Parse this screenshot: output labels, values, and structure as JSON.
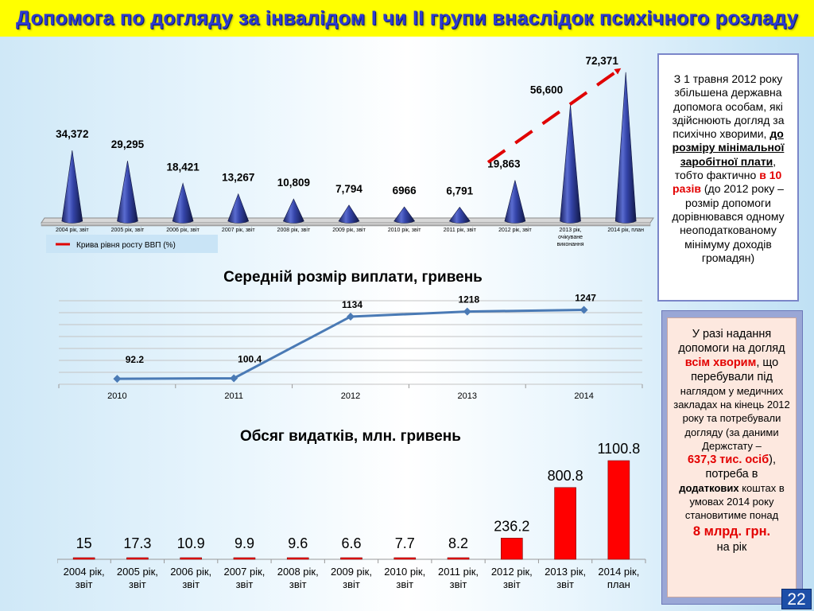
{
  "title": "Допомога по догляду за інвалідом І чи ІІ групи внаслідок психічного розладу",
  "page_number": "22",
  "colors": {
    "title_bg": "#ffff00",
    "title_text": "#2e3bd0",
    "cone": "#27348b",
    "line": "#4a7ab5",
    "bars": "#ff0000",
    "highlight": "#e30000"
  },
  "side_note_1": {
    "p1": "З 1 травня 2012 року збільшена державна допомога особам, які здійснюють догляд за психічно хворими, ",
    "u1": "до розміру мінімальної заробітної плати",
    "p2": ", тобто фактично ",
    "r1": "в 10 разів",
    "p3": " (до 2012 року – розмір допомоги дорівнювався одному неоподаткованому мінімуму доходів громадян)"
  },
  "side_note_2": {
    "l1": "У разі надання допомоги на догляд",
    "r1": "всім хворим",
    "l2": ", що перебували під",
    "l3": "наглядом у медичних закладах на кінець 2012 року та потребували догляду (за даними Держстату –",
    "r2": "637,3 тис. осіб",
    "l4": "), потреба в",
    "b1": "додаткових",
    "l5": " коштах в умовах 2014 року становитиме понад",
    "r3": "8 млрд. грн.",
    "l6": "на рік"
  },
  "chart_data": [
    {
      "type": "bar",
      "categories": [
        "2004 рік, звіт",
        "2005 рік, звіт",
        "2006 рік, звіт",
        "2007 рік, звіт",
        "2008 рік, звіт",
        "2009 рік, звіт",
        "2010 рік, звіт",
        "2011 рік, звіт",
        "2012 рік, звіт",
        "2013 рік, очікуване виконання",
        "2014 рік, план"
      ],
      "values": [
        34.372,
        29.295,
        18.421,
        13.267,
        10.809,
        7.794,
        6.966,
        6.791,
        19.863,
        56.6,
        72.371
      ],
      "data_labels": [
        "34,372",
        "29,295",
        "18,421",
        "13,267",
        "10,809",
        "7,794",
        "6966",
        "6,791",
        "19,863",
        "56,600",
        "72,371"
      ],
      "legend": [
        "Крива рівня росту ВВП (%)"
      ],
      "legend_position": "bottom-left"
    },
    {
      "type": "line",
      "title": "Середній розмір виплати, гривень",
      "categories": [
        "2010",
        "2011",
        "2012",
        "2013",
        "2014"
      ],
      "values": [
        92.2,
        100.4,
        1134,
        1218,
        1247
      ],
      "data_labels": [
        "92.2",
        "100.4",
        "1134",
        "1218",
        "1247"
      ],
      "ylim": [
        0,
        1400
      ],
      "grid": true
    },
    {
      "type": "bar",
      "title": "Обсяг видатків, млн. гривень",
      "categories": [
        "2004 рік, звіт",
        "2005 рік, звіт",
        "2006 рік, звіт",
        "2007 рік, звіт",
        "2008 рік, звіт",
        "2009 рік, звіт",
        "2010 рік, звіт",
        "2011 рік, звіт",
        "2012 рік, звіт",
        "2013 рік, звіт",
        "2014 рік, план"
      ],
      "values": [
        15,
        17.3,
        10.9,
        9.9,
        9.6,
        6.6,
        7.7,
        8.2,
        236.2,
        800.8,
        1100.8
      ],
      "data_labels": [
        "15",
        "17.3",
        "10.9",
        "9.9",
        "9.6",
        "6.6",
        "7.7",
        "8.2",
        "236.2",
        "800.8",
        "1100.8"
      ]
    }
  ]
}
